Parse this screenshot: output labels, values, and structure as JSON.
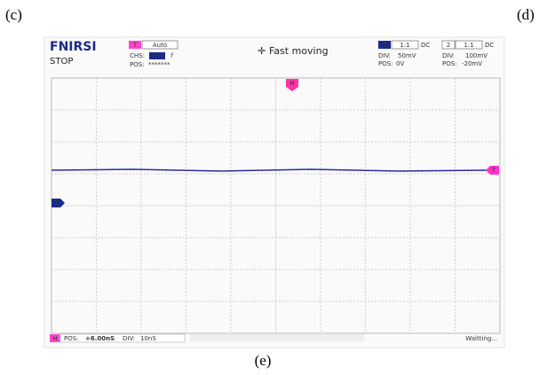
{
  "labels": {
    "left": "(c)",
    "right": "(d)",
    "bottom": "(e)"
  },
  "header": {
    "brand": "FNIRSI",
    "state": "STOP",
    "trigger": {
      "badge": "T",
      "mode": "Auto",
      "chs_label": "CHS:",
      "channel": "CH1",
      "edge": "f",
      "pos_label": "POS:",
      "pos": "*******"
    },
    "status": "Fast moving",
    "ch1": {
      "badge": "1",
      "ratio": "1:1",
      "coupling": "DC",
      "div_label": "DIV:",
      "div": "50mV",
      "pos_label": "POS:",
      "pos": "0V"
    },
    "ch2": {
      "badge": "2",
      "ratio": "1:1",
      "coupling": "DC",
      "div_label": "DIV:",
      "div": "100mV",
      "pos_label": "POS:",
      "pos": "-20mV"
    }
  },
  "markers": {
    "h": "H",
    "ch1": "1",
    "trigger": "T"
  },
  "footer": {
    "badge": "H",
    "pos_label": "POS:",
    "pos": "+6.00nS",
    "div_label": "DIV:",
    "div": "10nS",
    "state": "Waitting..."
  }
}
